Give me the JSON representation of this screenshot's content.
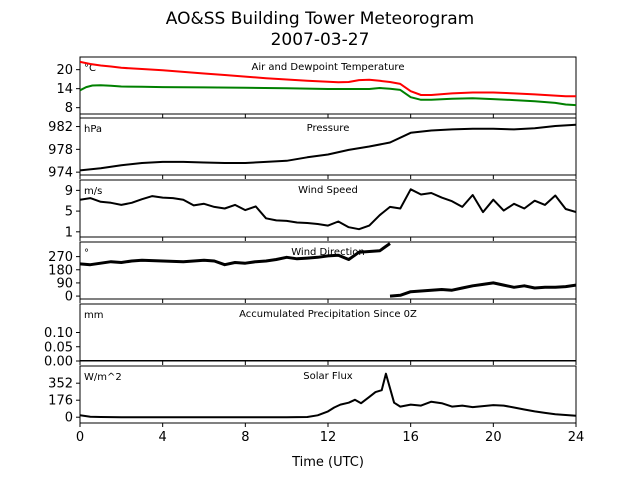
{
  "chart_data": {
    "type": "line",
    "title_line1": "AO&SS Building Tower Meteorogram",
    "title_line2": "2007-03-27",
    "xlabel": "Time (UTC)",
    "x_ticks": [
      0,
      4,
      8,
      12,
      16,
      20,
      24
    ],
    "xlim": [
      0,
      24
    ],
    "panels": [
      {
        "id": "temperature",
        "title": "Air and Dewpoint Temperature",
        "unit": "°C",
        "ylim": [
          6,
          24
        ],
        "y_ticks": [
          20,
          14,
          8
        ],
        "series": [
          {
            "color": "#ff0000",
            "x": [
              0,
              0.5,
              1,
              1.5,
              2,
              3,
              4,
              5,
              6,
              7,
              8,
              9,
              10,
              11,
              12,
              12.5,
              13,
              13.5,
              14,
              14.5,
              15,
              15.5,
              16,
              16.5,
              17,
              18,
              19,
              20,
              21,
              22,
              23,
              23.5,
              24
            ],
            "y": [
              22.5,
              21.8,
              21.3,
              21.0,
              20.6,
              20.2,
              19.8,
              19.3,
              18.8,
              18.3,
              17.8,
              17.3,
              16.9,
              16.5,
              16.2,
              16.0,
              16.1,
              16.7,
              16.8,
              16.5,
              16.1,
              15.5,
              13.2,
              12.0,
              12.0,
              12.5,
              12.8,
              12.8,
              12.5,
              12.2,
              11.8,
              11.6,
              11.6
            ]
          },
          {
            "color": "#008000",
            "x": [
              0,
              0.3,
              0.6,
              1,
              1.5,
              2,
              3,
              4,
              6,
              8,
              10,
              12,
              13,
              14,
              14.5,
              15,
              15.5,
              16,
              16.5,
              17,
              18,
              19,
              20,
              21,
              22,
              23,
              23.5,
              24
            ],
            "y": [
              13.5,
              14.5,
              15.0,
              15.1,
              14.9,
              14.7,
              14.6,
              14.5,
              14.4,
              14.3,
              14.1,
              13.9,
              13.9,
              13.9,
              14.2,
              14.0,
              13.6,
              11.3,
              10.5,
              10.5,
              10.8,
              11.0,
              10.7,
              10.4,
              10.0,
              9.5,
              9.0,
              8.8
            ]
          }
        ]
      },
      {
        "id": "pressure",
        "title": "Pressure",
        "unit": "hPa",
        "ylim": [
          973.5,
          983.5
        ],
        "y_ticks": [
          982,
          978,
          974
        ],
        "series": [
          {
            "color": "#000000",
            "x": [
              0,
              1,
              2,
              3,
              4,
              5,
              6,
              7,
              8,
              9,
              10,
              11,
              12,
              13,
              14,
              15,
              16,
              17,
              18,
              19,
              20,
              21,
              22,
              23,
              24
            ],
            "y": [
              974.3,
              974.7,
              975.2,
              975.6,
              975.8,
              975.8,
              975.7,
              975.6,
              975.6,
              975.8,
              976.0,
              976.6,
              977.1,
              977.9,
              978.5,
              979.2,
              980.9,
              981.3,
              981.5,
              981.6,
              981.6,
              981.5,
              981.7,
              982.1,
              982.3
            ]
          }
        ]
      },
      {
        "id": "wind-speed",
        "title": "Wind Speed",
        "unit": "m/s",
        "ylim": [
          0,
          11
        ],
        "y_ticks": [
          9,
          5,
          1
        ],
        "series": [
          {
            "color": "#000000",
            "x": [
              0,
              0.5,
              1,
              1.5,
              2,
              2.5,
              3,
              3.5,
              4,
              4.5,
              5,
              5.5,
              6,
              6.5,
              7,
              7.5,
              8,
              8.5,
              9,
              9.5,
              10,
              10.5,
              11,
              11.5,
              12,
              12.5,
              13,
              13.5,
              14,
              14.5,
              15,
              15.5,
              16,
              16.5,
              17,
              17.5,
              18,
              18.5,
              19,
              19.5,
              20,
              20.5,
              21,
              21.5,
              22,
              22.5,
              23,
              23.5,
              24
            ],
            "y": [
              7.2,
              7.5,
              6.8,
              6.6,
              6.2,
              6.6,
              7.3,
              7.9,
              7.6,
              7.5,
              7.2,
              6.1,
              6.4,
              5.8,
              5.5,
              6.2,
              5.2,
              5.9,
              3.6,
              3.2,
              3.1,
              2.8,
              2.7,
              2.5,
              2.2,
              3.0,
              1.9,
              1.5,
              2.2,
              4.2,
              5.8,
              5.5,
              9.2,
              8.2,
              8.5,
              7.6,
              6.9,
              5.8,
              8.1,
              4.8,
              7.2,
              5.1,
              6.4,
              5.5,
              7.0,
              6.2,
              8.0,
              5.4,
              4.8
            ]
          }
        ]
      },
      {
        "id": "wind-direction",
        "title": "Wind Direction",
        "unit": "°",
        "ylim": [
          -20,
          370
        ],
        "y_ticks": [
          270,
          180,
          90,
          0
        ],
        "series": [
          {
            "color": "#000000",
            "x": [
              0,
              0.5,
              1,
              1.5,
              2,
              2.5,
              3,
              4,
              5,
              6,
              6.5,
              7,
              7.5,
              8,
              8.5,
              9,
              9.5,
              10,
              10.5,
              11,
              11.5,
              12,
              12.5,
              13,
              13.5,
              14,
              14.5,
              14.8,
              15
            ],
            "y": [
              220,
              215,
              225,
              235,
              230,
              240,
              245,
              240,
              235,
              245,
              240,
              215,
              230,
              225,
              235,
              240,
              250,
              265,
              255,
              260,
              265,
              275,
              280,
              250,
              300,
              305,
              310,
              340,
              360
            ]
          },
          {
            "color": "#000000",
            "x": [
              15,
              15.5,
              16,
              16.5,
              17,
              17.5,
              18,
              18.5,
              19,
              19.5,
              20,
              20.5,
              21,
              21.5,
              22,
              22.5,
              23,
              23.5,
              24
            ],
            "y": [
              0,
              5,
              30,
              35,
              40,
              45,
              40,
              55,
              70,
              80,
              90,
              75,
              60,
              70,
              55,
              60,
              60,
              65,
              75
            ]
          }
        ]
      },
      {
        "id": "precipitation",
        "title": "Accumulated Precipitation Since 0Z",
        "unit": "mm",
        "ylim": [
          0,
          0.2
        ],
        "y_ticks": [
          0.1,
          0.05,
          0.0
        ],
        "y_tick_labels": [
          "0.10",
          "0.05",
          "0.00"
        ],
        "series": [
          {
            "color": "#000000",
            "x": [
              0,
              24
            ],
            "y": [
              0,
              0
            ]
          }
        ]
      },
      {
        "id": "solar-flux",
        "title": "Solar Flux",
        "unit": "W/m^2",
        "ylim": [
          -60,
          530
        ],
        "y_ticks": [
          352,
          176,
          0
        ],
        "series": [
          {
            "color": "#000000",
            "x": [
              0,
              0.5,
              1,
              2,
              4,
              6,
              8,
              10,
              11,
              11.5,
              12,
              12.3,
              12.6,
              13,
              13.3,
              13.6,
              14,
              14.3,
              14.6,
              14.8,
              15,
              15.2,
              15.5,
              16,
              16.5,
              17,
              17.5,
              18,
              18.5,
              19,
              19.5,
              20,
              20.5,
              21,
              21.5,
              22,
              22.5,
              23,
              24
            ],
            "y": [
              20,
              5,
              2,
              0,
              0,
              0,
              0,
              0,
              2,
              20,
              60,
              100,
              130,
              150,
              180,
              145,
              210,
              260,
              280,
              450,
              300,
              150,
              110,
              130,
              120,
              160,
              145,
              110,
              120,
              105,
              115,
              125,
              120,
              100,
              80,
              60,
              45,
              30,
              15
            ]
          }
        ]
      }
    ]
  }
}
